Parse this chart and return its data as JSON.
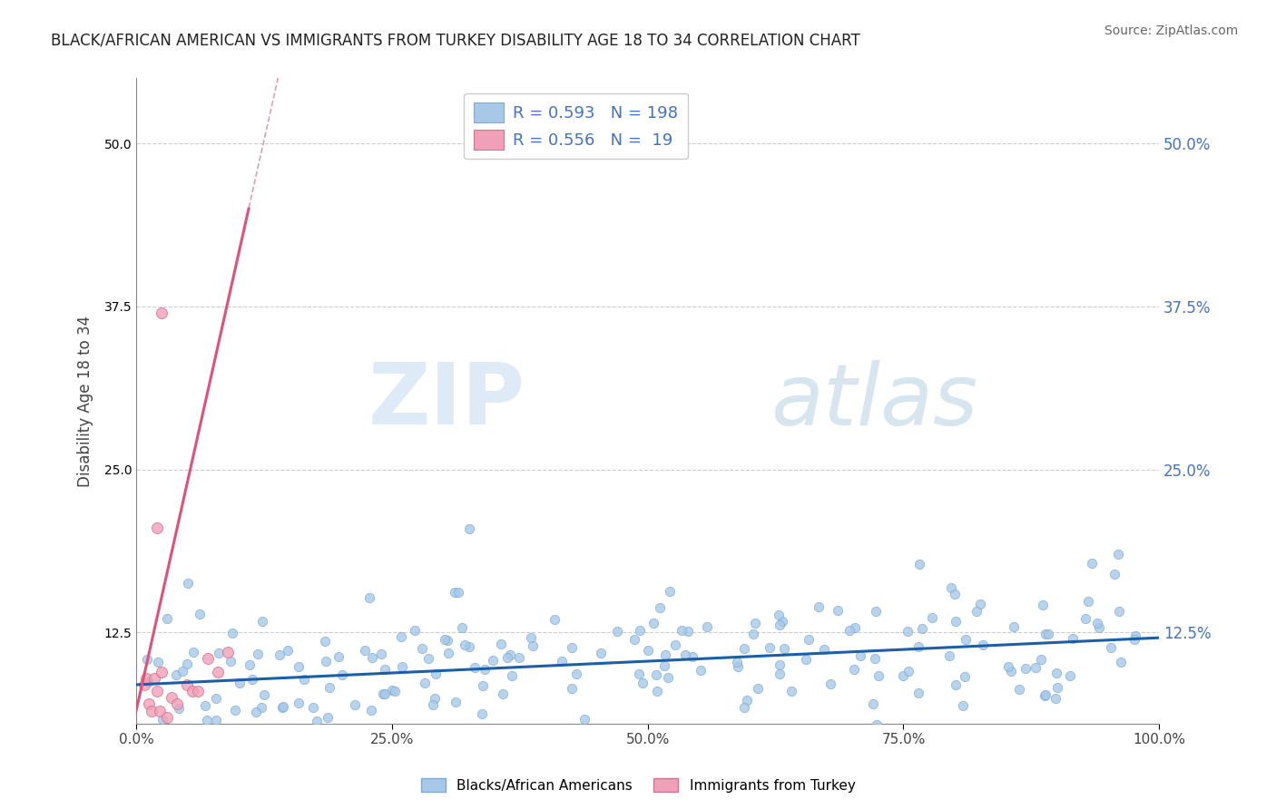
{
  "title": "BLACK/AFRICAN AMERICAN VS IMMIGRANTS FROM TURKEY DISABILITY AGE 18 TO 34 CORRELATION CHART",
  "source": "Source: ZipAtlas.com",
  "ylabel": "Disability Age 18 to 34",
  "blue_R": 0.593,
  "blue_N": 198,
  "pink_R": 0.556,
  "pink_N": 19,
  "blue_color": "#a8c8e8",
  "blue_line_color": "#1a5fa8",
  "pink_color": "#f0a0b8",
  "pink_line_color": "#e0507a",
  "legend_text_color": "#4472c4",
  "xlim": [
    0,
    100
  ],
  "ylim": [
    5.5,
    55
  ],
  "yticks": [
    12.5,
    25.0,
    37.5,
    50.0
  ],
  "ytick_labels": [
    "12.5%",
    "25.0%",
    "37.5%",
    "50.0%"
  ],
  "xticks": [
    0,
    25,
    50,
    75,
    100
  ],
  "xtick_labels": [
    "0.0%",
    "25.0%",
    "50.0%",
    "75.0%",
    "100.0%"
  ],
  "watermark_zip": "ZIP",
  "watermark_atlas": "atlas",
  "legend_blue_label": "Blacks/African Americans",
  "legend_pink_label": "Immigrants from Turkey",
  "background_color": "#ffffff",
  "grid_color": "#cccccc",
  "blue_slope": 0.036,
  "blue_intercept": 8.5,
  "pink_slope": 3.5,
  "pink_intercept": 6.5,
  "gray_dash_slope": 3.5,
  "gray_dash_intercept": 6.5
}
